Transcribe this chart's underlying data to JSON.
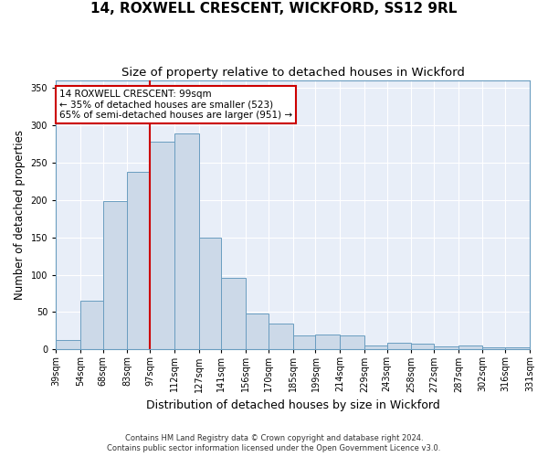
{
  "title": "14, ROXWELL CRESCENT, WICKFORD, SS12 9RL",
  "subtitle": "Size of property relative to detached houses in Wickford",
  "xlabel": "Distribution of detached houses by size in Wickford",
  "ylabel": "Number of detached properties",
  "bar_color": "#ccd9e8",
  "bar_edge_color": "#6a9dc0",
  "background_color": "#e8eef8",
  "grid_color": "#ffffff",
  "vline_x": 97,
  "vline_color": "#cc0000",
  "annotation_text": "14 ROXWELL CRESCENT: 99sqm\n← 35% of detached houses are smaller (523)\n65% of semi-detached houses are larger (951) →",
  "annotation_box_color": "#ffffff",
  "annotation_box_edge": "#cc0000",
  "bins": [
    39,
    54,
    68,
    83,
    97,
    112,
    127,
    141,
    156,
    170,
    185,
    199,
    214,
    229,
    243,
    258,
    272,
    287,
    302,
    316,
    331
  ],
  "counts": [
    13,
    65,
    198,
    238,
    278,
    289,
    149,
    96,
    48,
    35,
    19,
    20,
    19,
    5,
    9,
    8,
    4,
    5,
    3,
    3
  ],
  "ylim": [
    0,
    360
  ],
  "yticks": [
    0,
    50,
    100,
    150,
    200,
    250,
    300,
    350
  ],
  "footer1": "Contains HM Land Registry data © Crown copyright and database right 2024.",
  "footer2": "Contains public sector information licensed under the Open Government Licence v3.0.",
  "title_fontsize": 11,
  "subtitle_fontsize": 9.5,
  "tick_fontsize": 7,
  "ylabel_fontsize": 8.5,
  "xlabel_fontsize": 9,
  "footer_fontsize": 6,
  "annot_fontsize": 7.5
}
